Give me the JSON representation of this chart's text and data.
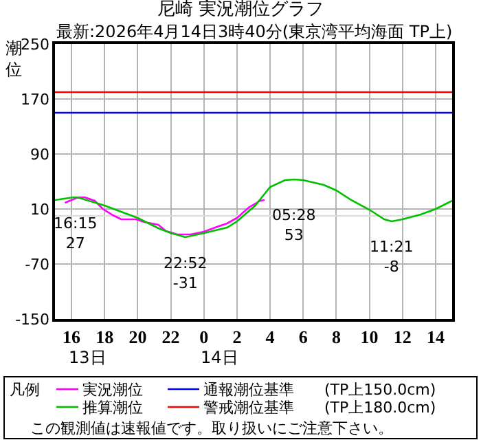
{
  "chart_data": {
    "type": "line",
    "title": "尼崎 実況潮位グラフ",
    "subtitle": "最新:2026年4月14日3時40分(東京湾平均海面 TP上)",
    "ylabel": "潮位",
    "legend_title": "凡例",
    "xlim": [
      "2026-04-13T15:00",
      "2026-04-14T15:00"
    ],
    "xticks": [
      {
        "value": "2026-04-13T16:00",
        "label": "16"
      },
      {
        "value": "2026-04-13T18:00",
        "label": "18"
      },
      {
        "value": "2026-04-13T20:00",
        "label": "20"
      },
      {
        "value": "2026-04-13T22:00",
        "label": "22"
      },
      {
        "value": "2026-04-14T00:00",
        "label": "0"
      },
      {
        "value": "2026-04-14T02:00",
        "label": "2"
      },
      {
        "value": "2026-04-14T04:00",
        "label": "4"
      },
      {
        "value": "2026-04-14T06:00",
        "label": "6"
      },
      {
        "value": "2026-04-14T08:00",
        "label": "8"
      },
      {
        "value": "2026-04-14T10:00",
        "label": "10"
      },
      {
        "value": "2026-04-14T12:00",
        "label": "12"
      },
      {
        "value": "2026-04-14T14:00",
        "label": "14"
      }
    ],
    "ylim": [
      -150,
      250
    ],
    "yticks": [
      -150,
      -70,
      10,
      90,
      170,
      250
    ],
    "grid": true,
    "legend": "bottom",
    "marker": "none",
    "line_style": "solid",
    "series": [
      {
        "name": "実況潮位",
        "color": "#ff00ff",
        "x": [
          "2026-04-13T15:36",
          "2026-04-13T16:00",
          "2026-04-13T16:24",
          "2026-04-13T16:48",
          "2026-04-13T17:24",
          "2026-04-13T17:54",
          "2026-04-13T18:30",
          "2026-04-13T19:00",
          "2026-04-13T19:54",
          "2026-04-13T20:24",
          "2026-04-13T21:15",
          "2026-04-13T21:42",
          "2026-04-13T22:24",
          "2026-04-13T23:12",
          "2026-04-14T00:00",
          "2026-04-14T00:54",
          "2026-04-14T01:24",
          "2026-04-14T02:00",
          "2026-04-14T02:42",
          "2026-04-14T03:24",
          "2026-04-14T03:40"
        ],
        "values": [
          19,
          23,
          27,
          27,
          22,
          10,
          1,
          -5,
          -5,
          -9,
          -13,
          -22,
          -27,
          -27,
          -23,
          -15,
          -11,
          -3,
          12,
          22,
          23
        ]
      },
      {
        "name": "推算潮位",
        "color": "#00c000",
        "x": [
          "2026-04-13T15:00",
          "2026-04-13T16:06",
          "2026-04-13T16:15",
          "2026-04-13T16:30",
          "2026-04-13T18:00",
          "2026-04-13T20:00",
          "2026-04-13T21:15",
          "2026-04-13T22:00",
          "2026-04-13T22:36",
          "2026-04-13T22:52",
          "2026-04-14T00:00",
          "2026-04-14T01:24",
          "2026-04-14T02:00",
          "2026-04-14T03:06",
          "2026-04-14T04:00",
          "2026-04-14T04:54",
          "2026-04-14T05:28",
          "2026-04-14T06:00",
          "2026-04-14T07:15",
          "2026-04-14T08:00",
          "2026-04-14T08:54",
          "2026-04-14T10:00",
          "2026-04-14T10:54",
          "2026-04-14T11:21",
          "2026-04-14T12:00",
          "2026-04-14T13:06",
          "2026-04-14T14:00",
          "2026-04-14T15:00"
        ],
        "values": [
          23,
          27,
          27,
          26,
          15,
          -3,
          -18,
          -25,
          -29,
          -31,
          -25,
          -17,
          -8,
          15,
          42,
          52,
          53,
          52,
          45,
          37,
          23,
          9,
          -5,
          -8,
          -5,
          2,
          10,
          22
        ]
      }
    ],
    "ref_lines": [
      {
        "axis": "y",
        "value": 150,
        "label": "通報潮位基準　　(TP上150.0cm)",
        "color": "#0000ff"
      },
      {
        "axis": "y",
        "value": 180,
        "label": "警戒潮位基準　　(TP上180.0cm)",
        "color": "#ff0000"
      },
      {
        "axis": "y",
        "value": 0,
        "color": "#dddddd"
      }
    ],
    "annotations": [
      {
        "text": "16:15\n27",
        "x": "2026-04-13T16:15",
        "y": 27
      },
      {
        "text": "22:52\n-31",
        "x": "2026-04-13T22:52",
        "y": -31
      },
      {
        "text": "05:28\n53",
        "x": "2026-04-14T05:28",
        "y": 53
      },
      {
        "text": "11:21\n-8",
        "x": "2026-04-14T11:21",
        "y": -8
      },
      "13日",
      "14日",
      "この観測値は速報値です。取り扱いにご注意下さい。"
    ]
  }
}
